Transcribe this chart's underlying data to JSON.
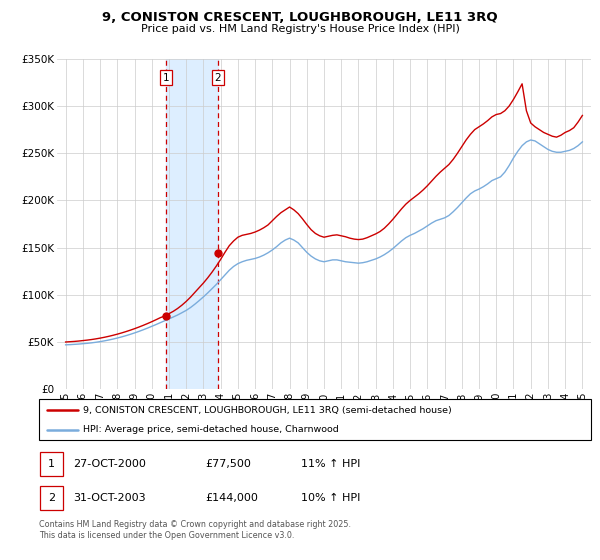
{
  "title": "9, CONISTON CRESCENT, LOUGHBOROUGH, LE11 3RQ",
  "subtitle": "Price paid vs. HM Land Registry's House Price Index (HPI)",
  "ylim": [
    0,
    350000
  ],
  "xlim": [
    1994.5,
    2025.5
  ],
  "yticks": [
    0,
    50000,
    100000,
    150000,
    200000,
    250000,
    300000,
    350000
  ],
  "ytick_labels": [
    "£0",
    "£50K",
    "£100K",
    "£150K",
    "£200K",
    "£250K",
    "£300K",
    "£350K"
  ],
  "xtick_years": [
    1995,
    1996,
    1997,
    1998,
    1999,
    2000,
    2001,
    2002,
    2003,
    2004,
    2005,
    2006,
    2007,
    2008,
    2009,
    2010,
    2011,
    2012,
    2013,
    2014,
    2015,
    2016,
    2017,
    2018,
    2019,
    2020,
    2021,
    2022,
    2023,
    2024,
    2025
  ],
  "property_color": "#cc0000",
  "hpi_color": "#7aacdc",
  "shade_color": "#ddeeff",
  "vline_color": "#cc0000",
  "background_color": "#ffffff",
  "grid_color": "#cccccc",
  "sale1_x": 2000.82,
  "sale1_y": 77500,
  "sale2_x": 2003.83,
  "sale2_y": 144000,
  "legend_line1": "9, CONISTON CRESCENT, LOUGHBOROUGH, LE11 3RQ (semi-detached house)",
  "legend_line2": "HPI: Average price, semi-detached house, Charnwood",
  "table_rows": [
    {
      "num": "1",
      "date": "27-OCT-2000",
      "price": "£77,500",
      "hpi": "11% ↑ HPI"
    },
    {
      "num": "2",
      "date": "31-OCT-2003",
      "price": "£144,000",
      "hpi": "10% ↑ HPI"
    }
  ],
  "footnote": "Contains HM Land Registry data © Crown copyright and database right 2025.\nThis data is licensed under the Open Government Licence v3.0.",
  "hpi_data_x": [
    1995.0,
    1995.25,
    1995.5,
    1995.75,
    1996.0,
    1996.25,
    1996.5,
    1996.75,
    1997.0,
    1997.25,
    1997.5,
    1997.75,
    1998.0,
    1998.25,
    1998.5,
    1998.75,
    1999.0,
    1999.25,
    1999.5,
    1999.75,
    2000.0,
    2000.25,
    2000.5,
    2000.75,
    2001.0,
    2001.25,
    2001.5,
    2001.75,
    2002.0,
    2002.25,
    2002.5,
    2002.75,
    2003.0,
    2003.25,
    2003.5,
    2003.75,
    2004.0,
    2004.25,
    2004.5,
    2004.75,
    2005.0,
    2005.25,
    2005.5,
    2005.75,
    2006.0,
    2006.25,
    2006.5,
    2006.75,
    2007.0,
    2007.25,
    2007.5,
    2007.75,
    2008.0,
    2008.25,
    2008.5,
    2008.75,
    2009.0,
    2009.25,
    2009.5,
    2009.75,
    2010.0,
    2010.25,
    2010.5,
    2010.75,
    2011.0,
    2011.25,
    2011.5,
    2011.75,
    2012.0,
    2012.25,
    2012.5,
    2012.75,
    2013.0,
    2013.25,
    2013.5,
    2013.75,
    2014.0,
    2014.25,
    2014.5,
    2014.75,
    2015.0,
    2015.25,
    2015.5,
    2015.75,
    2016.0,
    2016.25,
    2016.5,
    2016.75,
    2017.0,
    2017.25,
    2017.5,
    2017.75,
    2018.0,
    2018.25,
    2018.5,
    2018.75,
    2019.0,
    2019.25,
    2019.5,
    2019.75,
    2020.0,
    2020.25,
    2020.5,
    2020.75,
    2021.0,
    2021.25,
    2021.5,
    2021.75,
    2022.0,
    2022.25,
    2022.5,
    2022.75,
    2023.0,
    2023.25,
    2023.5,
    2023.75,
    2024.0,
    2024.25,
    2024.5,
    2024.75,
    2025.0
  ],
  "hpi_data_y": [
    47000,
    47200,
    47500,
    47800,
    48200,
    48600,
    49100,
    49700,
    50400,
    51200,
    52100,
    53100,
    54200,
    55400,
    56700,
    58100,
    59600,
    61200,
    62900,
    64700,
    66600,
    68500,
    70500,
    72500,
    74500,
    76500,
    78600,
    81000,
    83500,
    86500,
    90000,
    93800,
    97800,
    102000,
    106500,
    111000,
    116000,
    121000,
    126000,
    130000,
    133000,
    135000,
    136500,
    137500,
    138500,
    140000,
    142000,
    144500,
    147500,
    151000,
    155000,
    158000,
    160000,
    158000,
    155000,
    150000,
    145000,
    141000,
    138000,
    136000,
    135000,
    136000,
    137000,
    137000,
    136000,
    135000,
    134500,
    134000,
    133500,
    134000,
    135000,
    136500,
    138000,
    140000,
    142500,
    145500,
    149000,
    153000,
    157000,
    160500,
    163000,
    165000,
    167500,
    170000,
    173000,
    176000,
    178500,
    180000,
    181500,
    184000,
    188000,
    192500,
    197500,
    202500,
    207000,
    210000,
    212000,
    214500,
    217500,
    221000,
    223000,
    225000,
    230000,
    237000,
    245000,
    252000,
    258000,
    262000,
    264000,
    263000,
    260000,
    257000,
    254000,
    252000,
    251000,
    251000,
    252000,
    253000,
    255000,
    258000,
    262000
  ],
  "prop_data_x": [
    1995.0,
    1995.25,
    1995.5,
    1995.75,
    1996.0,
    1996.25,
    1996.5,
    1996.75,
    1997.0,
    1997.25,
    1997.5,
    1997.75,
    1998.0,
    1998.25,
    1998.5,
    1998.75,
    1999.0,
    1999.25,
    1999.5,
    1999.75,
    2000.0,
    2000.25,
    2000.5,
    2000.75,
    2001.0,
    2001.25,
    2001.5,
    2001.75,
    2002.0,
    2002.25,
    2002.5,
    2002.75,
    2003.0,
    2003.25,
    2003.5,
    2003.75,
    2004.0,
    2004.25,
    2004.5,
    2004.75,
    2005.0,
    2005.25,
    2005.5,
    2005.75,
    2006.0,
    2006.25,
    2006.5,
    2006.75,
    2007.0,
    2007.25,
    2007.5,
    2007.75,
    2008.0,
    2008.25,
    2008.5,
    2008.75,
    2009.0,
    2009.25,
    2009.5,
    2009.75,
    2010.0,
    2010.25,
    2010.5,
    2010.75,
    2011.0,
    2011.25,
    2011.5,
    2011.75,
    2012.0,
    2012.25,
    2012.5,
    2012.75,
    2013.0,
    2013.25,
    2013.5,
    2013.75,
    2014.0,
    2014.25,
    2014.5,
    2014.75,
    2015.0,
    2015.25,
    2015.5,
    2015.75,
    2016.0,
    2016.25,
    2016.5,
    2016.75,
    2017.0,
    2017.25,
    2017.5,
    2017.75,
    2018.0,
    2018.25,
    2018.5,
    2018.75,
    2019.0,
    2019.25,
    2019.5,
    2019.75,
    2020.0,
    2020.25,
    2020.5,
    2020.75,
    2021.0,
    2021.25,
    2021.5,
    2021.75,
    2022.0,
    2022.25,
    2022.5,
    2022.75,
    2023.0,
    2023.25,
    2023.5,
    2023.75,
    2024.0,
    2024.25,
    2024.5,
    2024.75,
    2025.0
  ],
  "prop_data_y": [
    50000,
    50300,
    50600,
    51000,
    51500,
    52000,
    52600,
    53300,
    54100,
    55000,
    56000,
    57100,
    58300,
    59600,
    61000,
    62500,
    64100,
    65800,
    67600,
    69500,
    71500,
    73600,
    75800,
    77500,
    80000,
    82500,
    85500,
    89000,
    93000,
    97500,
    102500,
    107500,
    112500,
    118000,
    124000,
    130500,
    137500,
    145000,
    152000,
    157000,
    161000,
    163000,
    164000,
    165000,
    166500,
    168500,
    171000,
    174000,
    178500,
    183000,
    187000,
    190000,
    193000,
    190000,
    186000,
    180500,
    174500,
    169000,
    165000,
    162500,
    161000,
    162000,
    163000,
    163500,
    162500,
    161500,
    160000,
    159000,
    158500,
    159000,
    160500,
    162500,
    164500,
    167000,
    170500,
    175000,
    180000,
    185500,
    191000,
    196000,
    200000,
    203500,
    207000,
    211000,
    215500,
    220500,
    225500,
    230000,
    234000,
    238000,
    243500,
    250000,
    257000,
    264000,
    270000,
    275000,
    278000,
    281000,
    284500,
    288500,
    291000,
    292000,
    295000,
    300000,
    307000,
    315000,
    323500,
    295000,
    282000,
    278000,
    275000,
    272000,
    270000,
    268000,
    267000,
    269000,
    272000,
    274000,
    277000,
    283000,
    290000
  ]
}
